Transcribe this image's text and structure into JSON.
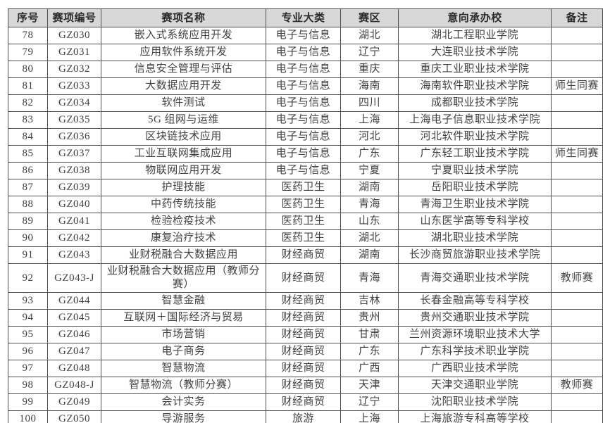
{
  "colors": {
    "page_background": "#ffffff",
    "header_background": "#d7d7d7",
    "border": "#4f4f4f",
    "header_text": "#2b2b2b",
    "body_text": "#414141"
  },
  "table": {
    "columns": [
      {
        "key": "index",
        "label": "序号"
      },
      {
        "key": "code",
        "label": "赛项编号"
      },
      {
        "key": "name",
        "label": "赛项名称"
      },
      {
        "key": "category",
        "label": "专业大类"
      },
      {
        "key": "region",
        "label": "赛区"
      },
      {
        "key": "school",
        "label": "意向承办校"
      },
      {
        "key": "note",
        "label": "备注"
      }
    ],
    "rows": [
      {
        "index": "78",
        "code": "GZ030",
        "name": "嵌入式系统应用开发",
        "category": "电子与信息",
        "region": "湖北",
        "school": "湖北工程职业学院",
        "note": ""
      },
      {
        "index": "79",
        "code": "GZ031",
        "name": "应用软件系统开发",
        "category": "电子与信息",
        "region": "辽宁",
        "school": "大连职业技术学院",
        "note": ""
      },
      {
        "index": "80",
        "code": "GZ032",
        "name": "信息安全管理与评估",
        "category": "电子与信息",
        "region": "重庆",
        "school": "重庆工业职业技术学院",
        "note": ""
      },
      {
        "index": "81",
        "code": "GZ033",
        "name": "大数据应用开发",
        "category": "电子与信息",
        "region": "海南",
        "school": "海南软件职业技术学院",
        "note": "师生同赛"
      },
      {
        "index": "82",
        "code": "GZ034",
        "name": "软件测试",
        "category": "电子与信息",
        "region": "四川",
        "school": "成都职业技术学院",
        "note": ""
      },
      {
        "index": "83",
        "code": "GZ035",
        "name": "5G 组网与运维",
        "category": "电子与信息",
        "region": "上海",
        "school": "上海电子信息职业技术学院",
        "note": ""
      },
      {
        "index": "84",
        "code": "GZ036",
        "name": "区块链技术应用",
        "category": "电子与信息",
        "region": "河北",
        "school": "河北软件职业技术学院",
        "note": ""
      },
      {
        "index": "85",
        "code": "GZ037",
        "name": "工业互联网集成应用",
        "category": "电子与信息",
        "region": "广东",
        "school": "广东轻工职业技术学院",
        "note": "师生同赛"
      },
      {
        "index": "86",
        "code": "GZ038",
        "name": "物联网应用开发",
        "category": "电子与信息",
        "region": "宁夏",
        "school": "宁夏职业技术学院",
        "note": ""
      },
      {
        "index": "87",
        "code": "GZ039",
        "name": "护理技能",
        "category": "医药卫生",
        "region": "湖南",
        "school": "岳阳职业技术学院",
        "note": ""
      },
      {
        "index": "88",
        "code": "GZ040",
        "name": "中药传统技能",
        "category": "医药卫生",
        "region": "青海",
        "school": "青海卫生职业技术学院",
        "note": ""
      },
      {
        "index": "89",
        "code": "GZ041",
        "name": "检验检疫技术",
        "category": "医药卫生",
        "region": "山东",
        "school": "山东医学高等专科学校",
        "note": ""
      },
      {
        "index": "90",
        "code": "GZ042",
        "name": "康复治疗技术",
        "category": "医药卫生",
        "region": "湖北",
        "school": "湖北职业技术学院",
        "note": ""
      },
      {
        "index": "91",
        "code": "GZ043",
        "name": "业财税融合大数据应用",
        "category": "财经商贸",
        "region": "湖南",
        "school": "长沙商贸旅游职业技术学院",
        "note": ""
      },
      {
        "index": "92",
        "code": "GZ043-J",
        "name": "业财税融合大数据应用（教师分赛）",
        "category": "财经商贸",
        "region": "青海",
        "school": "青海交通职业技术学院",
        "note": "教师赛"
      },
      {
        "index": "93",
        "code": "GZ044",
        "name": "智慧金融",
        "category": "财经商贸",
        "region": "吉林",
        "school": "长春金融高等专科学校",
        "note": ""
      },
      {
        "index": "94",
        "code": "GZ045",
        "name": "互联网＋国际经济与贸易",
        "category": "财经商贸",
        "region": "贵州",
        "school": "贵州交通职业技术学院",
        "note": ""
      },
      {
        "index": "95",
        "code": "GZ046",
        "name": "市场营销",
        "category": "财经商贸",
        "region": "甘肃",
        "school": "兰州资源环境职业技术大学",
        "note": ""
      },
      {
        "index": "96",
        "code": "GZ047",
        "name": "电子商务",
        "category": "财经商贸",
        "region": "广东",
        "school": "广东科学技术职业学院",
        "note": ""
      },
      {
        "index": "97",
        "code": "GZ048",
        "name": "智慧物流",
        "category": "财经商贸",
        "region": "广西",
        "school": "广西职业技术学院",
        "note": ""
      },
      {
        "index": "98",
        "code": "GZ048-J",
        "name": "智慧物流（教师分赛）",
        "category": "财经商贸",
        "region": "天津",
        "school": "天津交通职业学院",
        "note": "教师赛"
      },
      {
        "index": "99",
        "code": "GZ049",
        "name": "会计实务",
        "category": "财经商贸",
        "region": "辽宁",
        "school": "沈阳职业技术学院",
        "note": ""
      },
      {
        "index": "100",
        "code": "GZ050",
        "name": "导游服务",
        "category": "旅游",
        "region": "上海",
        "school": "上海旅游专科高等学校",
        "note": ""
      }
    ]
  }
}
